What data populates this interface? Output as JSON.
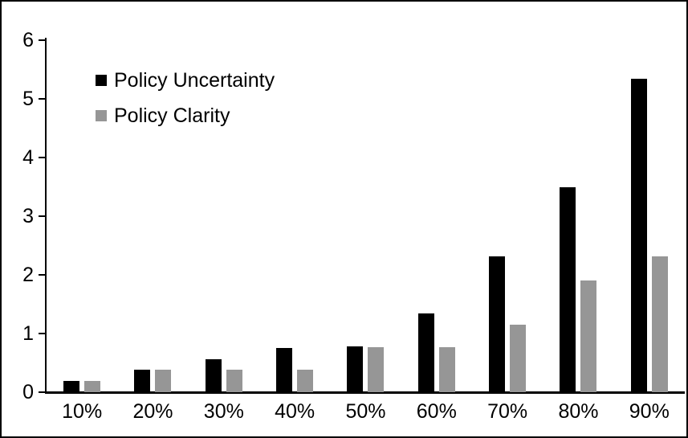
{
  "figure": {
    "background": "#ffffff",
    "border_color": "#000000"
  },
  "chart_data": {
    "type": "bar",
    "title": "",
    "xlabel": "",
    "ylabel": "",
    "categories": [
      "10%",
      "20%",
      "30%",
      "40%",
      "50%",
      "60%",
      "70%",
      "80%",
      "90%"
    ],
    "series": [
      {
        "name": "Policy Uncertainty",
        "color": "#000000",
        "values": [
          0.19,
          0.38,
          0.56,
          0.76,
          0.78,
          1.34,
          2.31,
          3.5,
          5.34
        ]
      },
      {
        "name": "Policy Clarity",
        "color": "#969696",
        "values": [
          0.19,
          0.38,
          0.38,
          0.38,
          0.77,
          0.77,
          1.15,
          1.9,
          2.31
        ]
      }
    ],
    "ylim": [
      0,
      6
    ],
    "yticks": [
      0,
      1,
      2,
      3,
      4,
      5,
      6
    ],
    "grid": false,
    "legend_position": "top-left"
  }
}
